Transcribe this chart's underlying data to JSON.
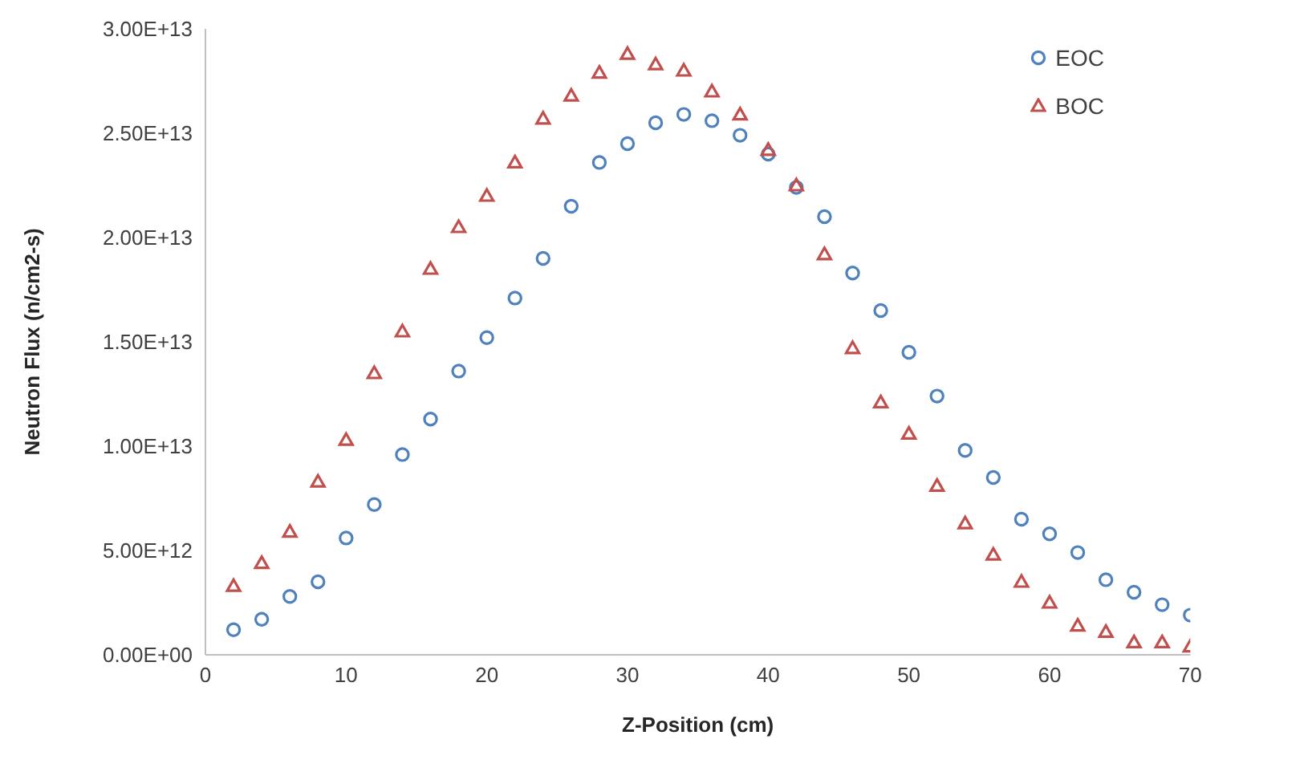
{
  "chart_data": {
    "type": "scatter",
    "xlabel": "Z-Position (cm)",
    "ylabel": "Neutron Flux (n/cm2-s)",
    "x": [
      2,
      4,
      6,
      8,
      10,
      12,
      14,
      16,
      18,
      20,
      22,
      24,
      26,
      28,
      30,
      32,
      34,
      36,
      38,
      40,
      42,
      44,
      46,
      48,
      50,
      52,
      54,
      56,
      58,
      60,
      62,
      64,
      66,
      68,
      70
    ],
    "series": [
      {
        "name": "EOC",
        "color": "#4f81bd",
        "marker": "circle",
        "values": [
          1200000000000.0,
          1700000000000.0,
          2800000000000.0,
          3500000000000.0,
          5600000000000.0,
          7200000000000.0,
          9600000000000.0,
          11300000000000.0,
          13600000000000.0,
          15200000000000.0,
          17100000000000.0,
          19000000000000.0,
          21500000000000.0,
          23600000000000.0,
          24500000000000.0,
          25500000000000.0,
          25900000000000.0,
          25600000000000.0,
          24900000000000.0,
          24000000000000.0,
          22400000000000.0,
          21000000000000.0,
          18300000000000.0,
          16500000000000.0,
          14500000000000.0,
          12400000000000.0,
          9800000000000.0,
          8500000000000.0,
          6500000000000.0,
          5800000000000.0,
          4900000000000.0,
          3600000000000.0,
          3000000000000.0,
          2400000000000.0,
          1900000000000.0
        ]
      },
      {
        "name": "BOC",
        "color": "#c0504d",
        "marker": "triangle",
        "values": [
          3300000000000.0,
          4400000000000.0,
          5900000000000.0,
          8300000000000.0,
          10300000000000.0,
          13500000000000.0,
          15500000000000.0,
          18500000000000.0,
          20500000000000.0,
          22000000000000.0,
          23600000000000.0,
          25700000000000.0,
          26800000000000.0,
          27900000000000.0,
          28800000000000.0,
          28300000000000.0,
          28000000000000.0,
          27000000000000.0,
          25900000000000.0,
          24200000000000.0,
          22500000000000.0,
          19200000000000.0,
          14700000000000.0,
          12100000000000.0,
          10600000000000.0,
          8100000000000.0,
          6300000000000.0,
          4800000000000.0,
          3500000000000.0,
          2500000000000.0,
          1400000000000.0,
          1100000000000.0,
          600000000000.0,
          600000000000.0,
          400000000000.0
        ]
      }
    ],
    "xlim": [
      0,
      70
    ],
    "xticks": [
      0,
      10,
      20,
      30,
      40,
      50,
      60,
      70
    ],
    "ylim": [
      0,
      30000000000000.0
    ],
    "yticks": [
      {
        "value": 0,
        "label": "0.00E+00"
      },
      {
        "value": 5000000000000.0,
        "label": "5.00E+12"
      },
      {
        "value": 10000000000000.0,
        "label": "1.00E+13"
      },
      {
        "value": 15000000000000.0,
        "label": "1.50E+13"
      },
      {
        "value": 20000000000000.0,
        "label": "2.00E+13"
      },
      {
        "value": 25000000000000.0,
        "label": "2.50E+13"
      },
      {
        "value": 30000000000000.0,
        "label": "3.00E+13"
      }
    ],
    "grid": false,
    "legend": "top right"
  }
}
